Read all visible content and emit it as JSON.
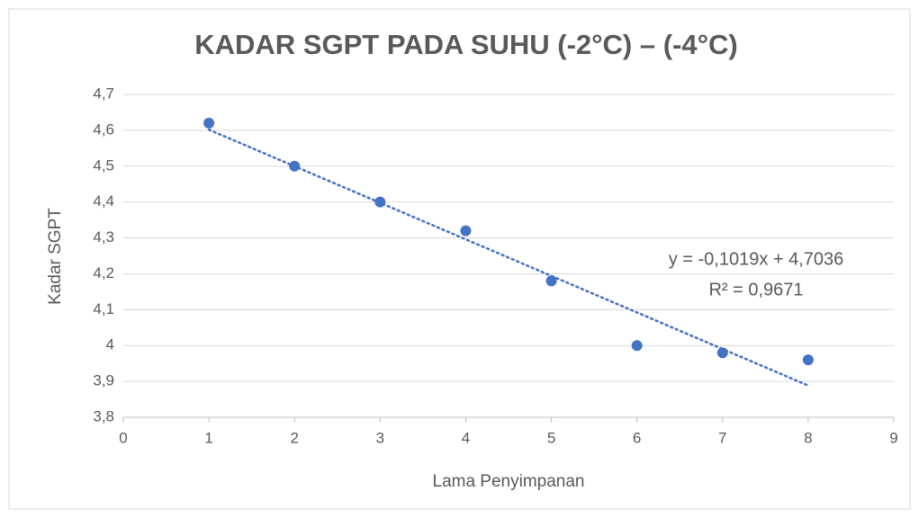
{
  "chart_data": {
    "type": "scatter",
    "title": "KADAR SGPT PADA SUHU (-2°C) – (-4°C)",
    "x_label": "Lama Penyimpanan",
    "y_label": "Kadar SGPT",
    "x": [
      1,
      2,
      3,
      4,
      5,
      6,
      7,
      8
    ],
    "values": [
      4.62,
      4.5,
      4.4,
      4.32,
      4.18,
      4.0,
      3.98,
      3.96
    ],
    "color": "#4472c4",
    "xlim": [
      0,
      9
    ],
    "xticks": [
      0,
      1,
      2,
      3,
      4,
      5,
      6,
      7,
      8,
      9
    ],
    "ylim": [
      3.8,
      4.7
    ],
    "yticks": [
      {
        "value": 3.8,
        "label": "3,8"
      },
      {
        "value": 3.9,
        "label": "3,9"
      },
      4,
      {
        "value": 4.1,
        "label": "4,1"
      },
      {
        "value": 4.2,
        "label": "4,2"
      },
      {
        "value": 4.3,
        "label": "4,3"
      },
      {
        "value": 4.4,
        "label": "4,4"
      },
      {
        "value": 4.5,
        "label": "4,5"
      },
      {
        "value": 4.6,
        "label": "4,6"
      },
      {
        "value": 4.7,
        "label": "4,7"
      }
    ],
    "grid": true,
    "trendline": {
      "slope": -0.1019,
      "intercept": 4.7036,
      "equation": "y = -0,1019x + 4,7036",
      "r2": "R² = 0,9671"
    }
  }
}
